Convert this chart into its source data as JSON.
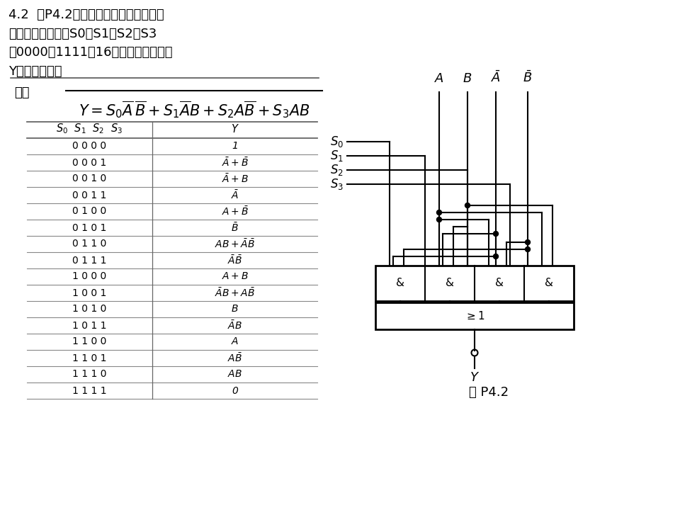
{
  "title_text": "4.2  图P4.2是一个多功能逻辑函数发生\n器电路。试写出当S0、S1、S2、S3\n为0000～1111共16种不同状态时输出\nY的逻辑函数式",
  "solution_label": "解：",
  "formula": "Y = \\overline{S_0\\overline{A}\\overline{B} + S_1\\overline{A}B + S_2A\\overline{B} + S_3AB}",
  "table_col1_header": "$S_0\\ S_1\\ S_2\\ S_3$",
  "table_col2_header": "$Y$",
  "table_rows": [
    [
      "0 0 0 0",
      "1"
    ],
    [
      "0 0 0 1",
      "$\\bar{A}+\\bar{B}$"
    ],
    [
      "0 0 1 0",
      "$\\bar{A}+B$"
    ],
    [
      "0 0 1 1",
      "$\\bar{A}$"
    ],
    [
      "0 1 0 0",
      "$A+\\bar{B}$"
    ],
    [
      "0 1 0 1",
      "$\\bar{B}$"
    ],
    [
      "0 1 1 0",
      "$AB+\\bar{A}\\bar{B}$"
    ],
    [
      "0 1 1 1",
      "$\\bar{A}\\bar{B}$"
    ],
    [
      "1 0 0 0",
      "$A+B$"
    ],
    [
      "1 0 0 1",
      "$\\bar{A}B+A\\bar{B}$"
    ],
    [
      "1 0 1 0",
      "$B$"
    ],
    [
      "1 0 1 1",
      "$\\bar{A}B$"
    ],
    [
      "1 1 0 0",
      "$A$"
    ],
    [
      "1 1 0 1",
      "$A\\bar{B}$"
    ],
    [
      "1 1 1 0",
      "$AB$"
    ],
    [
      "1 1 1 1",
      "0"
    ]
  ],
  "fig_caption": "图 P4.2",
  "bg_color": "#ffffff",
  "text_color": "#000000",
  "line_color": "#555555"
}
